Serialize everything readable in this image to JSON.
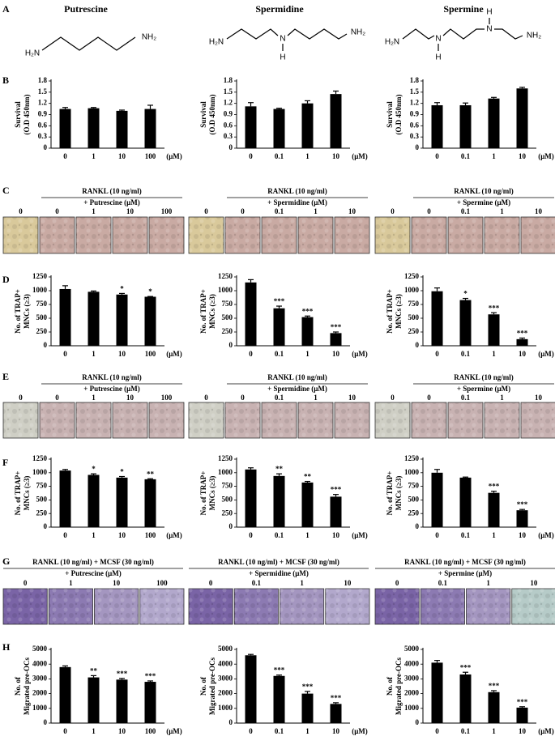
{
  "panel_labels": [
    "A",
    "B",
    "C",
    "D",
    "E",
    "F",
    "G",
    "H"
  ],
  "structures": [
    {
      "name": "Putrescine",
      "atoms": [
        "H₂N",
        "NH₂"
      ]
    },
    {
      "name": "Spermidine",
      "atoms": [
        "H₂N",
        "N",
        "H",
        "NH₂"
      ]
    },
    {
      "name": "Spermine",
      "atoms": [
        "H₂N",
        "N",
        "H",
        "N",
        "H",
        "NH₂"
      ]
    }
  ],
  "image_rows": [
    {
      "panels": [
        {
          "lines": [
            "RANKL (10 ng/ml)",
            "+ Putrescine (μM)"
          ],
          "labels": [
            "0",
            "0",
            "1",
            "10",
            "100"
          ]
        },
        {
          "lines": [
            "RANKL (10 ng/ml)",
            "+ Spermidine (μM)"
          ],
          "labels": [
            "0",
            "0",
            "0.1",
            "1",
            "10"
          ]
        },
        {
          "lines": [
            "RANKL (10 ng/ml)",
            "+ Spermine (μM)"
          ],
          "labels": [
            "0",
            "0",
            "0.1",
            "1",
            "10"
          ]
        }
      ]
    },
    {
      "panels": [
        {
          "lines": [
            "RANKL (10 ng/ml)",
            "+ Putrescine (μM)"
          ],
          "labels": [
            "0",
            "0",
            "1",
            "10",
            "100"
          ]
        },
        {
          "lines": [
            "RANKL (10 ng/ml)",
            "+ Spermidine (μM)"
          ],
          "labels": [
            "0",
            "0",
            "0.1",
            "1",
            "10"
          ]
        },
        {
          "lines": [
            "RANKL (10 ng/ml)",
            "+ Spermine (μM)"
          ],
          "labels": [
            "0",
            "0",
            "0.1",
            "1",
            "10"
          ]
        }
      ]
    },
    {
      "panels": [
        {
          "lines": [
            "RANKL (10 ng/ml) + MCSF (30 ng/ml)",
            "+ Putrescine (μM)"
          ],
          "labels": [
            "0",
            "1",
            "10",
            "100"
          ]
        },
        {
          "lines": [
            "RANKL (10 ng/ml) + MCSF (30 ng/ml)",
            "+ Spermidine (μM)"
          ],
          "labels": [
            "0",
            "0.1",
            "1",
            "10"
          ]
        },
        {
          "lines": [
            "RANKL (10 ng/ml) + MCSF (30 ng/ml)",
            "+ Spermine (μM)"
          ],
          "labels": [
            "0",
            "0.1",
            "1",
            "10"
          ]
        }
      ]
    }
  ],
  "chart_data": [
    {
      "type": "bar",
      "ylabel": [
        "Survival",
        "(O.D 450nm)"
      ],
      "categories": [
        "0",
        "1",
        "10",
        "100"
      ],
      "unit": "(μM)",
      "values": [
        1.05,
        1.07,
        1.0,
        1.05
      ],
      "errors": [
        0.04,
        0.02,
        0.02,
        0.1
      ],
      "ylim": [
        0,
        1.8
      ],
      "yticks": [
        0,
        0.3,
        0.6,
        0.9,
        1.2,
        1.5,
        1.8
      ],
      "color": "#000000"
    },
    {
      "type": "bar",
      "ylabel": [
        "Survival",
        "(O.D 450nm)"
      ],
      "categories": [
        "0",
        "0.1",
        "1",
        "10"
      ],
      "unit": "(μM)",
      "values": [
        1.12,
        1.05,
        1.2,
        1.45
      ],
      "errors": [
        0.1,
        0.02,
        0.07,
        0.08
      ],
      "ylim": [
        0,
        1.8
      ],
      "yticks": [
        0,
        0.3,
        0.6,
        0.9,
        1.2,
        1.5,
        1.8
      ],
      "color": "#000000"
    },
    {
      "type": "bar",
      "ylabel": [
        "Survival",
        "(O.D 450nm)"
      ],
      "categories": [
        "0",
        "0.1",
        "1",
        "10"
      ],
      "unit": "(μM)",
      "values": [
        1.15,
        1.15,
        1.33,
        1.6
      ],
      "errors": [
        0.07,
        0.06,
        0.03,
        0.03
      ],
      "ylim": [
        0,
        1.8
      ],
      "yticks": [
        0,
        0.3,
        0.6,
        0.9,
        1.2,
        1.5,
        1.8
      ],
      "color": "#000000"
    },
    {
      "type": "bar",
      "ylabel": [
        "No. of TRAP+",
        "MNCs (≥3)"
      ],
      "categories": [
        "0",
        "1",
        "10",
        "100"
      ],
      "unit": "(μM)",
      "values": [
        1030,
        980,
        930,
        890
      ],
      "errors": [
        60,
        15,
        20,
        5
      ],
      "annotations": [
        null,
        null,
        "*",
        "*"
      ],
      "ylim": [
        0,
        1250
      ],
      "yticks": [
        0,
        250,
        500,
        750,
        1000,
        1250
      ],
      "color": "#000000"
    },
    {
      "type": "bar",
      "ylabel": [
        "No. of TRAP+",
        "MNCs (≥3)"
      ],
      "categories": [
        "0",
        "0.1",
        "1",
        "10"
      ],
      "unit": "(μM)",
      "values": [
        1150,
        680,
        520,
        230
      ],
      "errors": [
        50,
        40,
        20,
        20
      ],
      "annotations": [
        null,
        "***",
        "***",
        "***"
      ],
      "ylim": [
        0,
        1250
      ],
      "yticks": [
        0,
        250,
        500,
        750,
        1000,
        1250
      ],
      "color": "#000000"
    },
    {
      "type": "bar",
      "ylabel": [
        "No. of TRAP+",
        "MNCs (≥3)"
      ],
      "categories": [
        "0",
        "0.1",
        "1",
        "10"
      ],
      "unit": "(μM)",
      "values": [
        990,
        830,
        570,
        120
      ],
      "errors": [
        60,
        30,
        30,
        20
      ],
      "annotations": [
        null,
        "*",
        "***",
        "***"
      ],
      "ylim": [
        0,
        1250
      ],
      "yticks": [
        0,
        250,
        500,
        750,
        1000,
        1250
      ],
      "color": "#000000"
    },
    {
      "type": "bar",
      "ylabel": [
        "No. of TRAP+",
        "MNCs (≥3)"
      ],
      "categories": [
        "0",
        "1",
        "10",
        "100"
      ],
      "unit": "(μM)",
      "values": [
        1040,
        960,
        910,
        880
      ],
      "errors": [
        20,
        20,
        20,
        10
      ],
      "annotations": [
        null,
        "*",
        "*",
        "**"
      ],
      "ylim": [
        0,
        1250
      ],
      "yticks": [
        0,
        250,
        500,
        750,
        1000,
        1250
      ],
      "color": "#000000"
    },
    {
      "type": "bar",
      "ylabel": [
        "No. of TRAP+",
        "MNCs (≥3)"
      ],
      "categories": [
        "0",
        "0.1",
        "1",
        "10"
      ],
      "unit": "(μM)",
      "values": [
        1060,
        940,
        820,
        560
      ],
      "errors": [
        30,
        40,
        20,
        40
      ],
      "annotations": [
        null,
        "**",
        "**",
        "***"
      ],
      "ylim": [
        0,
        1250
      ],
      "yticks": [
        0,
        250,
        500,
        750,
        1000,
        1250
      ],
      "color": "#000000"
    },
    {
      "type": "bar",
      "ylabel": [
        "No. of TRAP+",
        "MNCs (≥3)"
      ],
      "categories": [
        "0",
        "0.1",
        "1",
        "10"
      ],
      "unit": "(μM)",
      "values": [
        1000,
        910,
        630,
        310
      ],
      "errors": [
        60,
        10,
        30,
        15
      ],
      "annotations": [
        null,
        null,
        "***",
        "***"
      ],
      "ylim": [
        0,
        1250
      ],
      "yticks": [
        0,
        250,
        500,
        750,
        1000,
        1250
      ],
      "color": "#000000"
    },
    {
      "type": "bar",
      "ylabel": [
        "No. of",
        "Migrated pre-OCs"
      ],
      "categories": [
        "0",
        "1",
        "10",
        "100"
      ],
      "unit": "(μM)",
      "values": [
        3800,
        3100,
        2950,
        2800
      ],
      "errors": [
        80,
        120,
        80,
        60
      ],
      "annotations": [
        null,
        "**",
        "***",
        "***"
      ],
      "ylim": [
        0,
        5000
      ],
      "yticks": [
        0,
        1000,
        2000,
        3000,
        4000,
        5000
      ],
      "color": "#000000"
    },
    {
      "type": "bar",
      "ylabel": [
        "No. of",
        "Migrated pre-OCs"
      ],
      "categories": [
        "0",
        "0.1",
        "1",
        "10"
      ],
      "unit": "(μM)",
      "values": [
        4600,
        3200,
        2000,
        1300
      ],
      "errors": [
        60,
        60,
        150,
        80
      ],
      "annotations": [
        null,
        "***",
        "***",
        "***"
      ],
      "ylim": [
        0,
        5000
      ],
      "yticks": [
        0,
        1000,
        2000,
        3000,
        4000,
        5000
      ],
      "color": "#000000"
    },
    {
      "type": "bar",
      "ylabel": [
        "No. of",
        "Migrated pre-OCs"
      ],
      "categories": [
        "0",
        "0.1",
        "1",
        "10"
      ],
      "unit": "(μM)",
      "values": [
        4100,
        3300,
        2100,
        1050
      ],
      "errors": [
        150,
        150,
        100,
        60
      ],
      "annotations": [
        null,
        "***",
        "***",
        "***"
      ],
      "ylim": [
        0,
        5000
      ],
      "yticks": [
        0,
        1000,
        2000,
        3000,
        4000,
        5000
      ],
      "color": "#000000"
    }
  ]
}
